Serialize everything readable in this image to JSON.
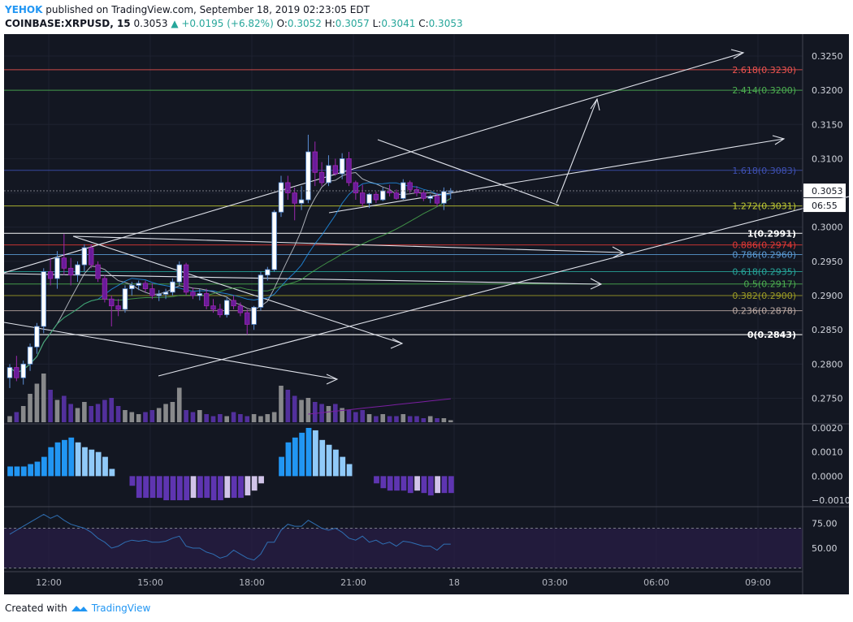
{
  "header": {
    "author": "YEHOK",
    "published_text": "published on TradingView.com, September 18, 2019 02:23:05 EDT",
    "symbol": "COINBASE:XRPUSD, 15",
    "last": "0.3053",
    "change": "▲ +0.0195 (+6.82%)",
    "o_label": "O:",
    "o_value": "0.3052",
    "h_label": "H:",
    "h_value": "0.3057",
    "l_label": "L:",
    "l_value": "0.3041",
    "c_label": "C:",
    "c_value": "0.3053"
  },
  "footer": {
    "created_with": "Created with",
    "brand": "TradingView"
  },
  "colors": {
    "background": "#131722",
    "bull": "#ffffff",
    "bear": "#6a1b9a",
    "volume_up": "#9e9e9e",
    "volume_down": "#5e35b1",
    "macd_pos_strong": "#2196f3",
    "macd_pos_weak": "#90caf9",
    "macd_neg_strong": "#5e35b1",
    "macd_neg_weak": "#d1c4e9",
    "rsi": "#2f6fb3",
    "rsi_band": "#2a1e47"
  },
  "chart_data": [
    {
      "type": "candlestick",
      "title": "COINBASE:XRPUSD, 15",
      "x_ticks": [
        "12:00",
        "15:00",
        "18:00",
        "21:00",
        "18",
        "03:00",
        "06:00",
        "09:00"
      ],
      "ylim": [
        0.2715,
        0.3282
      ],
      "y_ticks": [
        "0.3250",
        "0.3200",
        "0.3150",
        "0.3100",
        "0.3050",
        "0.3000",
        "0.2950",
        "0.2900",
        "0.2850",
        "0.2800",
        "0.2750"
      ],
      "last_price_label": "0.3053",
      "countdown_label": "06:55",
      "candles": [
        {
          "o": 0.278,
          "h": 0.28,
          "l": 0.2765,
          "c": 0.2795
        },
        {
          "o": 0.2795,
          "h": 0.2812,
          "l": 0.2775,
          "c": 0.278
        },
        {
          "o": 0.278,
          "h": 0.2805,
          "l": 0.277,
          "c": 0.28
        },
        {
          "o": 0.28,
          "h": 0.283,
          "l": 0.279,
          "c": 0.2825
        },
        {
          "o": 0.2825,
          "h": 0.286,
          "l": 0.2815,
          "c": 0.2855
        },
        {
          "o": 0.2855,
          "h": 0.294,
          "l": 0.2845,
          "c": 0.2935
        },
        {
          "o": 0.2935,
          "h": 0.2955,
          "l": 0.2915,
          "c": 0.2925
        },
        {
          "o": 0.2925,
          "h": 0.2965,
          "l": 0.291,
          "c": 0.2955
        },
        {
          "o": 0.2955,
          "h": 0.299,
          "l": 0.293,
          "c": 0.294
        },
        {
          "o": 0.294,
          "h": 0.2955,
          "l": 0.2915,
          "c": 0.293
        },
        {
          "o": 0.293,
          "h": 0.295,
          "l": 0.292,
          "c": 0.2945
        },
        {
          "o": 0.2945,
          "h": 0.2975,
          "l": 0.2935,
          "c": 0.297
        },
        {
          "o": 0.297,
          "h": 0.2975,
          "l": 0.294,
          "c": 0.2945
        },
        {
          "o": 0.2945,
          "h": 0.295,
          "l": 0.292,
          "c": 0.2925
        },
        {
          "o": 0.2925,
          "h": 0.293,
          "l": 0.289,
          "c": 0.2895
        },
        {
          "o": 0.2895,
          "h": 0.29,
          "l": 0.2855,
          "c": 0.2885
        },
        {
          "o": 0.2885,
          "h": 0.2895,
          "l": 0.287,
          "c": 0.288
        },
        {
          "o": 0.288,
          "h": 0.2915,
          "l": 0.2875,
          "c": 0.291
        },
        {
          "o": 0.291,
          "h": 0.292,
          "l": 0.29,
          "c": 0.2915
        },
        {
          "o": 0.2915,
          "h": 0.2922,
          "l": 0.2908,
          "c": 0.2918
        },
        {
          "o": 0.2918,
          "h": 0.2922,
          "l": 0.2905,
          "c": 0.291
        },
        {
          "o": 0.291,
          "h": 0.2918,
          "l": 0.2895,
          "c": 0.29
        },
        {
          "o": 0.29,
          "h": 0.2908,
          "l": 0.2892,
          "c": 0.2902
        },
        {
          "o": 0.2902,
          "h": 0.291,
          "l": 0.2895,
          "c": 0.2905
        },
        {
          "o": 0.2905,
          "h": 0.2925,
          "l": 0.29,
          "c": 0.292
        },
        {
          "o": 0.292,
          "h": 0.295,
          "l": 0.2915,
          "c": 0.2945
        },
        {
          "o": 0.2945,
          "h": 0.2948,
          "l": 0.29,
          "c": 0.2905
        },
        {
          "o": 0.2905,
          "h": 0.2912,
          "l": 0.2895,
          "c": 0.29
        },
        {
          "o": 0.29,
          "h": 0.291,
          "l": 0.2893,
          "c": 0.2903
        },
        {
          "o": 0.2903,
          "h": 0.291,
          "l": 0.288,
          "c": 0.2885
        },
        {
          "o": 0.2885,
          "h": 0.2895,
          "l": 0.2875,
          "c": 0.288
        },
        {
          "o": 0.288,
          "h": 0.2888,
          "l": 0.2868,
          "c": 0.2872
        },
        {
          "o": 0.2872,
          "h": 0.2898,
          "l": 0.2868,
          "c": 0.2893
        },
        {
          "o": 0.2893,
          "h": 0.29,
          "l": 0.288,
          "c": 0.2885
        },
        {
          "o": 0.2885,
          "h": 0.289,
          "l": 0.287,
          "c": 0.2875
        },
        {
          "o": 0.2875,
          "h": 0.288,
          "l": 0.2843,
          "c": 0.2858
        },
        {
          "o": 0.2858,
          "h": 0.2885,
          "l": 0.285,
          "c": 0.2883
        },
        {
          "o": 0.2883,
          "h": 0.2935,
          "l": 0.2878,
          "c": 0.293
        },
        {
          "o": 0.293,
          "h": 0.2942,
          "l": 0.2922,
          "c": 0.2938
        },
        {
          "o": 0.2938,
          "h": 0.3025,
          "l": 0.2935,
          "c": 0.3022
        },
        {
          "o": 0.3022,
          "h": 0.3075,
          "l": 0.3015,
          "c": 0.3065
        },
        {
          "o": 0.3065,
          "h": 0.3075,
          "l": 0.304,
          "c": 0.305
        },
        {
          "o": 0.305,
          "h": 0.3058,
          "l": 0.301,
          "c": 0.3035
        },
        {
          "o": 0.3035,
          "h": 0.306,
          "l": 0.3025,
          "c": 0.304
        },
        {
          "o": 0.304,
          "h": 0.3135,
          "l": 0.3035,
          "c": 0.311
        },
        {
          "o": 0.311,
          "h": 0.3125,
          "l": 0.306,
          "c": 0.308
        },
        {
          "o": 0.308,
          "h": 0.3095,
          "l": 0.306,
          "c": 0.3065
        },
        {
          "o": 0.3065,
          "h": 0.3105,
          "l": 0.306,
          "c": 0.309
        },
        {
          "o": 0.309,
          "h": 0.31,
          "l": 0.3075,
          "c": 0.3078
        },
        {
          "o": 0.3078,
          "h": 0.3108,
          "l": 0.307,
          "c": 0.31
        },
        {
          "o": 0.31,
          "h": 0.311,
          "l": 0.306,
          "c": 0.3065
        },
        {
          "o": 0.3065,
          "h": 0.3068,
          "l": 0.304,
          "c": 0.305
        },
        {
          "o": 0.305,
          "h": 0.3062,
          "l": 0.303,
          "c": 0.3035
        },
        {
          "o": 0.3035,
          "h": 0.305,
          "l": 0.3028,
          "c": 0.3048
        },
        {
          "o": 0.3048,
          "h": 0.3052,
          "l": 0.3035,
          "c": 0.304
        },
        {
          "o": 0.304,
          "h": 0.3058,
          "l": 0.3038,
          "c": 0.3053
        },
        {
          "o": 0.3053,
          "h": 0.3062,
          "l": 0.3045,
          "c": 0.305
        },
        {
          "o": 0.305,
          "h": 0.3055,
          "l": 0.304,
          "c": 0.3042
        },
        {
          "o": 0.3042,
          "h": 0.307,
          "l": 0.304,
          "c": 0.3065
        },
        {
          "o": 0.3065,
          "h": 0.3068,
          "l": 0.305,
          "c": 0.3055
        },
        {
          "o": 0.3055,
          "h": 0.306,
          "l": 0.3045,
          "c": 0.305
        },
        {
          "o": 0.305,
          "h": 0.3054,
          "l": 0.3038,
          "c": 0.3042
        },
        {
          "o": 0.3042,
          "h": 0.3048,
          "l": 0.3035,
          "c": 0.3045
        },
        {
          "o": 0.3045,
          "h": 0.305,
          "l": 0.303,
          "c": 0.3035
        },
        {
          "o": 0.3035,
          "h": 0.3058,
          "l": 0.3025,
          "c": 0.3052
        },
        {
          "o": 0.3052,
          "h": 0.3057,
          "l": 0.3041,
          "c": 0.3053
        }
      ],
      "volume": [
        3,
        5,
        8,
        14,
        19,
        24,
        16,
        11,
        13,
        9,
        7,
        10,
        8,
        9,
        11,
        12,
        8,
        6,
        5,
        4,
        5,
        6,
        7,
        9,
        10,
        17,
        6,
        5,
        6,
        4,
        3,
        4,
        3,
        5,
        4,
        3,
        4,
        3,
        4,
        5,
        18,
        16,
        13,
        11,
        12,
        10,
        9,
        8,
        9,
        7,
        6,
        5,
        6,
        4,
        3,
        4,
        3,
        3,
        4,
        3,
        3,
        2,
        3,
        2,
        2,
        1
      ],
      "fib_levels": [
        {
          "label": "2.618(0.3230)",
          "value": 0.323,
          "color": "#ef5350"
        },
        {
          "label": "2.414(0.3200)",
          "value": 0.32,
          "color": "#4caf50"
        },
        {
          "label": "1.618(0.3083)",
          "value": 0.3083,
          "color": "#3f51b5"
        },
        {
          "label": "1.272(0.3031)",
          "value": 0.3031,
          "color": "#c0ca33"
        },
        {
          "label": "1(0.2991)",
          "value": 0.2991,
          "color": "#ffffff"
        },
        {
          "label": "0.886(0.2974)",
          "value": 0.2974,
          "color": "#e53935"
        },
        {
          "label": "0.786(0.2960)",
          "value": 0.296,
          "color": "#5b9bd5"
        },
        {
          "label": "0.618(0.2935)",
          "value": 0.2935,
          "color": "#26a69a"
        },
        {
          "label": "0.5(0.2917)",
          "value": 0.2917,
          "color": "#4caf50"
        },
        {
          "label": "0.382(0.2900)",
          "value": 0.29,
          "color": "#9e9d24"
        },
        {
          "label": "0.236(0.2878)",
          "value": 0.2878,
          "color": "#bcaaa4"
        },
        {
          "label": "0(0.2843)",
          "value": 0.2843,
          "color": "#ffffff"
        }
      ]
    },
    {
      "type": "bar",
      "title": "MACD histogram",
      "ylim": [
        -0.0012,
        0.0021
      ],
      "y_ticks": [
        "0.0020",
        "0.0010",
        "0.0000",
        "−0.0010"
      ],
      "values": [
        0.0004,
        0.0004,
        0.0004,
        0.0005,
        0.0006,
        0.0008,
        0.0012,
        0.0014,
        0.0015,
        0.0016,
        0.0014,
        0.0012,
        0.0011,
        0.001,
        0.0008,
        0.0003,
        0.0,
        0.0,
        -0.0004,
        -0.0009,
        -0.0009,
        -0.0009,
        -0.0009,
        -0.001,
        -0.001,
        -0.001,
        -0.001,
        -0.0009,
        -0.0009,
        -0.0009,
        -0.001,
        -0.001,
        -0.0009,
        -0.0009,
        -0.0009,
        -0.0008,
        -0.0006,
        -0.0003,
        0.0,
        0.0,
        0.0008,
        0.0014,
        0.0016,
        0.0018,
        0.002,
        0.0019,
        0.0015,
        0.0013,
        0.0011,
        0.0008,
        0.0005,
        0.0,
        0.0,
        0.0,
        -0.0003,
        -0.0005,
        -0.0006,
        -0.0006,
        -0.0006,
        -0.0007,
        -0.0006,
        -0.0007,
        -0.0008,
        -0.0007,
        -0.0007,
        -0.0007
      ]
    },
    {
      "type": "line",
      "title": "RSI",
      "ylim": [
        28,
        90
      ],
      "y_ticks": [
        "75.00",
        "50.00"
      ],
      "band": [
        30,
        70
      ],
      "values": [
        64,
        68,
        72,
        76,
        80,
        84,
        80,
        83,
        78,
        74,
        72,
        70,
        66,
        60,
        56,
        50,
        52,
        56,
        58,
        57,
        58,
        56,
        56,
        57,
        60,
        62,
        52,
        50,
        50,
        46,
        44,
        40,
        42,
        48,
        44,
        40,
        38,
        44,
        56,
        56,
        68,
        74,
        72,
        72,
        78,
        74,
        70,
        68,
        70,
        66,
        60,
        58,
        62,
        56,
        58,
        54,
        56,
        52,
        57,
        56,
        54,
        52,
        52,
        48,
        54,
        54
      ]
    }
  ]
}
